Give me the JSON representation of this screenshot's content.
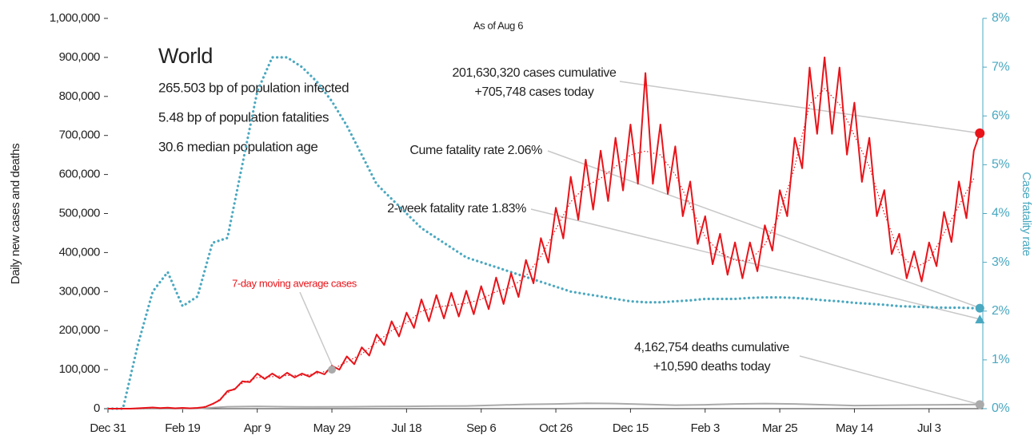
{
  "chart_data": {
    "type": "line",
    "subtitle": "As of Aug 6",
    "ylabel": "Daily new cases and deaths",
    "y2label": "Case fatality rate",
    "annotations": {
      "region": "World",
      "infected": "265.503 bp of population infected",
      "fatalities": "5.48 bp of population fatalities",
      "age": "30.6 median population age",
      "cases_cumulative": "201,630,320 cases cumulative",
      "cases_today": "+705,748 cases today",
      "cume_rate": "Cume fatality rate 2.06%",
      "two_week_rate": "2-week fatality rate 1.83%",
      "moving_average": "7-day moving average cases",
      "deaths_cumulative": "4,162,754 deaths cumulative",
      "deaths_today": "+10,590 deaths today"
    },
    "cume_fatality_rate": 2.06,
    "two_week_fatality_rate": 1.83,
    "xlim": [
      0,
      586
    ],
    "xticks": [
      {
        "value": 0,
        "label": "Dec 31"
      },
      {
        "value": 50,
        "label": "Feb 19"
      },
      {
        "value": 100,
        "label": "Apr 9"
      },
      {
        "value": 150,
        "label": "May 29"
      },
      {
        "value": 200,
        "label": "Jul 18"
      },
      {
        "value": 250,
        "label": "Sep 6"
      },
      {
        "value": 300,
        "label": "Oct 26"
      },
      {
        "value": 350,
        "label": "Dec 15"
      },
      {
        "value": 400,
        "label": "Feb 3"
      },
      {
        "value": 450,
        "label": "Mar 25"
      },
      {
        "value": 500,
        "label": "May 14"
      },
      {
        "value": 550,
        "label": "Jul 3"
      }
    ],
    "ylim": [
      0,
      1000000
    ],
    "yticks": [
      0,
      {
        "value": 100000,
        "label": "100,000"
      },
      {
        "value": 200000,
        "label": "200,000"
      },
      {
        "value": 300000,
        "label": "300,000"
      },
      {
        "value": 400000,
        "label": "400,000"
      },
      {
        "value": 500000,
        "label": "500,000"
      },
      {
        "value": 600000,
        "label": "600,000"
      },
      {
        "value": 700000,
        "label": "700,000"
      },
      {
        "value": 800000,
        "label": "800,000"
      },
      {
        "value": 900000,
        "label": "900,000"
      },
      {
        "value": 1000000,
        "label": "1,000,000"
      }
    ],
    "y2lim": [
      0,
      8
    ],
    "y2ticks": [
      {
        "value": 0,
        "label": "0%"
      },
      {
        "value": 1,
        "label": "1%"
      },
      {
        "value": 2,
        "label": "2%"
      },
      {
        "value": 3,
        "label": "3%"
      },
      {
        "value": 4,
        "label": "4%"
      },
      {
        "value": 5,
        "label": "5%"
      },
      {
        "value": 6,
        "label": "6%"
      },
      {
        "value": 7,
        "label": "7%"
      },
      {
        "value": 8,
        "label": "8%"
      }
    ],
    "series": [
      {
        "name": "Daily cases",
        "color": "#e8141a",
        "style": "solid",
        "x": [
          0,
          5,
          10,
          15,
          20,
          25,
          30,
          35,
          40,
          45,
          50,
          55,
          60,
          65,
          70,
          75,
          80,
          85,
          90,
          95,
          100,
          105,
          110,
          115,
          120,
          125,
          130,
          135,
          140,
          145,
          150,
          155,
          160,
          165,
          170,
          175,
          180,
          185,
          190,
          195,
          200,
          205,
          210,
          215,
          220,
          225,
          230,
          235,
          240,
          245,
          250,
          255,
          260,
          265,
          270,
          275,
          280,
          285,
          290,
          295,
          300,
          305,
          310,
          315,
          320,
          325,
          330,
          335,
          340,
          345,
          350,
          355,
          360,
          365,
          370,
          375,
          380,
          385,
          390,
          395,
          400,
          405,
          410,
          415,
          420,
          425,
          430,
          435,
          440,
          445,
          450,
          455,
          460,
          465,
          470,
          475,
          480,
          485,
          490,
          495,
          500,
          505,
          510,
          515,
          520,
          525,
          530,
          535,
          540,
          545,
          550,
          555,
          560,
          565,
          570,
          575,
          580,
          584
        ],
        "values": [
          0,
          0,
          0,
          0,
          1000,
          2000,
          3000,
          1500,
          2500,
          1000,
          2000,
          1000,
          2000,
          4000,
          12000,
          22000,
          45000,
          50000,
          70000,
          68000,
          90000,
          76000,
          90000,
          78000,
          92000,
          80000,
          90000,
          82000,
          95000,
          88000,
          110000,
          100000,
          134000,
          114000,
          157000,
          136000,
          190000,
          163000,
          224000,
          185000,
          246000,
          207000,
          280000,
          224000,
          291000,
          231000,
          297000,
          236000,
          302000,
          242000,
          314000,
          255000,
          336000,
          268000,
          347000,
          286000,
          381000,
          321000,
          437000,
          374000,
          515000,
          436000,
          594000,
          484000,
          638000,
          510000,
          661000,
          532000,
          694000,
          559000,
          728000,
          576000,
          860000,
          576000,
          728000,
          550000,
          672000,
          493000,
          582000,
          422000,
          493000,
          370000,
          448000,
          343000,
          426000,
          334000,
          426000,
          352000,
          470000,
          405000,
          560000,
          493000,
          694000,
          616000,
          874000,
          704000,
          900000,
          704000,
          874000,
          651000,
          784000,
          581000,
          694000,
          493000,
          560000,
          396000,
          448000,
          334000,
          403000,
          326000,
          426000,
          365000,
          504000,
          427000,
          582000,
          488000,
          661000,
          705748
        ]
      },
      {
        "name": "7-day moving average cases",
        "color": "#e8141a",
        "style": "dotted",
        "x": [
          0,
          10,
          20,
          30,
          40,
          50,
          60,
          70,
          80,
          90,
          100,
          110,
          120,
          130,
          140,
          150,
          160,
          170,
          180,
          190,
          200,
          210,
          220,
          230,
          240,
          250,
          260,
          270,
          280,
          290,
          300,
          310,
          320,
          330,
          340,
          350,
          360,
          370,
          380,
          390,
          400,
          410,
          420,
          430,
          440,
          450,
          460,
          470,
          480,
          490,
          500,
          510,
          520,
          530,
          540,
          550,
          560,
          570,
          580
        ],
        "values": [
          0,
          0,
          0,
          2000,
          2000,
          1500,
          1500,
          10000,
          40000,
          65000,
          80000,
          82000,
          85000,
          85000,
          90000,
          100000,
          120000,
          140000,
          170000,
          200000,
          220000,
          250000,
          260000,
          265000,
          270000,
          280000,
          300000,
          310000,
          340000,
          390000,
          460000,
          530000,
          570000,
          590000,
          620000,
          650000,
          660000,
          650000,
          600000,
          520000,
          440000,
          400000,
          380000,
          380000,
          420000,
          500000,
          620000,
          780000,
          820000,
          780000,
          700000,
          620000,
          500000,
          400000,
          360000,
          380000,
          450000,
          520000,
          590000
        ]
      },
      {
        "name": "Case fatality rate",
        "color": "#4aa8c0",
        "style": "dotted-thick",
        "axis": "y2",
        "x": [
          0,
          10,
          20,
          30,
          40,
          50,
          60,
          70,
          80,
          90,
          100,
          110,
          120,
          130,
          140,
          150,
          160,
          170,
          180,
          190,
          200,
          210,
          220,
          230,
          240,
          250,
          260,
          270,
          280,
          290,
          300,
          310,
          320,
          330,
          340,
          350,
          360,
          370,
          380,
          390,
          400,
          410,
          420,
          430,
          440,
          450,
          460,
          470,
          480,
          490,
          500,
          510,
          520,
          530,
          540,
          550,
          560,
          570,
          580
        ],
        "values": [
          0,
          0,
          1.3,
          2.4,
          2.8,
          2.1,
          2.3,
          3.4,
          3.5,
          5,
          6.5,
          7.2,
          7.2,
          7,
          6.7,
          6.3,
          5.8,
          5.2,
          4.6,
          4.3,
          4,
          3.7,
          3.5,
          3.3,
          3.1,
          3,
          2.9,
          2.8,
          2.7,
          2.6,
          2.5,
          2.4,
          2.35,
          2.3,
          2.25,
          2.2,
          2.18,
          2.18,
          2.2,
          2.22,
          2.25,
          2.25,
          2.25,
          2.27,
          2.28,
          2.28,
          2.27,
          2.25,
          2.22,
          2.2,
          2.17,
          2.15,
          2.13,
          2.1,
          2.09,
          2.08,
          2.07,
          2.07,
          2.06
        ]
      },
      {
        "name": "Daily deaths",
        "color": "#aaaaaa",
        "style": "solid",
        "x": [
          0,
          20,
          40,
          60,
          80,
          100,
          120,
          140,
          160,
          180,
          200,
          220,
          240,
          260,
          280,
          300,
          320,
          340,
          360,
          380,
          400,
          420,
          440,
          460,
          480,
          500,
          520,
          540,
          560,
          584
        ],
        "values": [
          0,
          0,
          0,
          500,
          5000,
          6000,
          5000,
          4500,
          5000,
          5500,
          6000,
          6500,
          7000,
          9000,
          11000,
          12000,
          14000,
          13000,
          11000,
          9000,
          10000,
          12000,
          13000,
          12000,
          10000,
          8000,
          8500,
          9500,
          10000,
          10590
        ]
      }
    ]
  }
}
